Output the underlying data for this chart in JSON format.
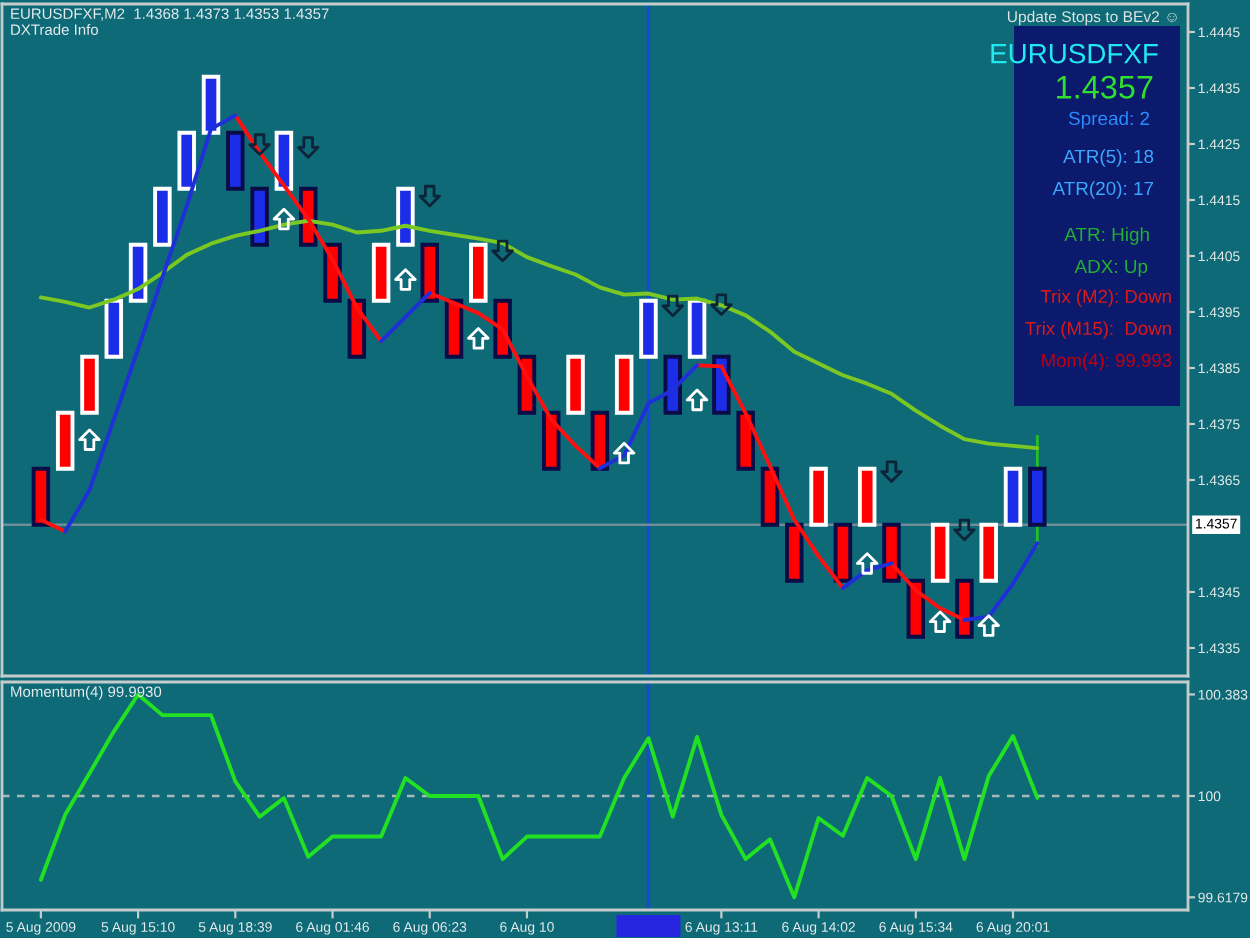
{
  "chart_data": [
    {
      "type": "candlestick",
      "title": "EURUSDFXF,M2  1.4368 1.4373 1.4353 1.4357",
      "subtitle": "DXTrade Info",
      "categories": [
        null,
        null,
        null,
        null,
        null,
        null,
        null,
        null,
        null,
        null,
        null,
        null,
        null,
        null,
        null,
        null,
        null,
        null,
        null,
        null,
        null,
        null,
        null,
        null,
        null,
        null,
        null,
        null,
        null,
        null,
        null,
        null,
        null,
        null,
        null,
        null,
        null,
        null,
        null,
        null,
        null,
        null
      ],
      "ohlc": [
        [
          1.4367,
          1.4367,
          1.4357,
          1.4357
        ],
        [
          1.4367,
          1.4377,
          1.4367,
          1.4377
        ],
        [
          1.4377,
          1.4387,
          1.4377,
          1.4387
        ],
        [
          1.4387,
          1.4397,
          1.4387,
          1.4397
        ],
        [
          1.4397,
          1.4407,
          1.4397,
          1.4407
        ],
        [
          1.4407,
          1.4417,
          1.4407,
          1.4417
        ],
        [
          1.4417,
          1.4427,
          1.4417,
          1.4427
        ],
        [
          1.4427,
          1.4437,
          1.4427,
          1.4437
        ],
        [
          1.4427,
          1.4427,
          1.4417,
          1.4417
        ],
        [
          1.4417,
          1.4417,
          1.4407,
          1.4407
        ],
        [
          1.4417,
          1.4427,
          1.4417,
          1.4427
        ],
        [
          1.4417,
          1.4417,
          1.4407,
          1.4407
        ],
        [
          1.4407,
          1.4407,
          1.4397,
          1.4397
        ],
        [
          1.4397,
          1.4397,
          1.4387,
          1.4387
        ],
        [
          1.4397,
          1.4407,
          1.4397,
          1.4407
        ],
        [
          1.4407,
          1.4417,
          1.4407,
          1.4417
        ],
        [
          1.4407,
          1.4407,
          1.4397,
          1.4397
        ],
        [
          1.4397,
          1.4397,
          1.4387,
          1.4387
        ],
        [
          1.4397,
          1.4407,
          1.4397,
          1.4407
        ],
        [
          1.4397,
          1.4397,
          1.4387,
          1.4387
        ],
        [
          1.4387,
          1.4387,
          1.4377,
          1.4377
        ],
        [
          1.4377,
          1.4377,
          1.4367,
          1.4367
        ],
        [
          1.4377,
          1.4387,
          1.4377,
          1.4387
        ],
        [
          1.4377,
          1.4377,
          1.4367,
          1.4367
        ],
        [
          1.4377,
          1.4387,
          1.4377,
          1.4387
        ],
        [
          1.4387,
          1.4397,
          1.4387,
          1.4397
        ],
        [
          1.4387,
          1.4387,
          1.4377,
          1.4377
        ],
        [
          1.4387,
          1.4397,
          1.4387,
          1.4397
        ],
        [
          1.4387,
          1.4387,
          1.4377,
          1.4377
        ],
        [
          1.4377,
          1.4377,
          1.4367,
          1.4367
        ],
        [
          1.4367,
          1.4367,
          1.4357,
          1.4357
        ],
        [
          1.4357,
          1.4357,
          1.4347,
          1.4347
        ],
        [
          1.4357,
          1.4367,
          1.4357,
          1.4367
        ],
        [
          1.4357,
          1.4357,
          1.4347,
          1.4347
        ],
        [
          1.4357,
          1.4367,
          1.4357,
          1.4367
        ],
        [
          1.4357,
          1.4357,
          1.4347,
          1.4347
        ],
        [
          1.4347,
          1.4347,
          1.4337,
          1.4337
        ],
        [
          1.4347,
          1.4357,
          1.4347,
          1.4357
        ],
        [
          1.4347,
          1.4347,
          1.4337,
          1.4337
        ],
        [
          1.4347,
          1.4357,
          1.4347,
          1.4357
        ],
        [
          1.4357,
          1.4367,
          1.4357,
          1.4367
        ],
        [
          1.4367,
          1.4373,
          1.4353,
          1.4357
        ]
      ],
      "colors": [
        "#ff0000",
        "#ff0000",
        "#ff0000",
        "#1c2de8",
        "#1c2de8",
        "#1c2de8",
        "#1c2de8",
        "#1c2de8",
        "#1c2de8",
        "#1c2de8",
        "#1c2de8",
        "#ff0000",
        "#ff0000",
        "#ff0000",
        "#ff0000",
        "#1c2de8",
        "#ff0000",
        "#ff0000",
        "#ff0000",
        "#ff0000",
        "#ff0000",
        "#ff0000",
        "#ff0000",
        "#ff0000",
        "#ff0000",
        "#1c2de8",
        "#1c2de8",
        "#1c2de8",
        "#1c2de8",
        "#ff0000",
        "#ff0000",
        "#ff0000",
        "#ff0000",
        "#ff0000",
        "#ff0000",
        "#ff0000",
        "#ff0000",
        "#ff0000",
        "#ff0000",
        "#ff0000",
        "#1c2de8",
        "#1c2de8"
      ],
      "series": [
        {
          "type": "line",
          "color": "#7cc822",
          "values": [
            1.43976,
            1.43968,
            1.43958,
            1.43972,
            1.43991,
            1.4402,
            1.44052,
            1.44072,
            1.44086,
            1.44095,
            1.44106,
            1.44113,
            1.44106,
            1.44092,
            1.44095,
            1.44104,
            1.44095,
            1.44088,
            1.44081,
            1.44073,
            1.44048,
            1.44032,
            1.44017,
            1.43994,
            1.43981,
            1.43983,
            1.43972,
            1.43974,
            1.43962,
            1.43944,
            1.43915,
            1.43879,
            1.43858,
            1.43837,
            1.43822,
            1.43804,
            1.43774,
            1.43747,
            1.43723,
            1.43715,
            1.43711,
            1.43707
          ]
        },
        {
          "type": "line",
          "color": "#ff1010",
          "values": [
            1.43579,
            1.43558,
            null,
            null,
            null,
            null,
            null,
            null,
            1.44301,
            1.44235,
            1.44176,
            1.44116,
            1.44044,
            1.43958,
            1.43898,
            null,
            1.43984,
            1.43966,
            1.43948,
            1.43919,
            1.43835,
            1.43758,
            1.43711,
            1.43671,
            null,
            null,
            null,
            1.43855,
            1.43853,
            1.43769,
            1.43675,
            1.43579,
            1.43514,
            1.43457,
            null,
            1.43501,
            1.43453,
            1.43421,
            1.434,
            null,
            null,
            null
          ]
        },
        {
          "type": "line",
          "color": "#2030d8",
          "values": [
            null,
            1.43558,
            1.43632,
            1.43758,
            1.43884,
            1.44012,
            1.44139,
            1.44277,
            1.44301,
            null,
            null,
            null,
            null,
            null,
            1.43898,
            1.43941,
            1.43984,
            null,
            null,
            null,
            null,
            null,
            null,
            1.43671,
            1.43694,
            1.43787,
            1.43811,
            1.43855,
            null,
            null,
            null,
            null,
            null,
            1.43457,
            1.43489,
            1.43501,
            null,
            null,
            1.434,
            1.43406,
            1.43465,
            1.43537
          ]
        },
        {
          "type": "scatter",
          "marker": "triangle",
          "color": "#ffffff",
          "values": [
            null,
            null,
            1.43722,
            null,
            null,
            null,
            null,
            null,
            null,
            null,
            1.44116,
            null,
            null,
            null,
            null,
            1.44008,
            null,
            null,
            1.43903,
            null,
            null,
            null,
            null,
            null,
            1.43698,
            null,
            null,
            1.43793,
            null,
            null,
            null,
            null,
            null,
            null,
            1.43501,
            null,
            null,
            1.43397,
            null,
            1.4339,
            null,
            null
          ]
        },
        {
          "type": "scatter",
          "marker": "triangle_down",
          "color": "#0c2438",
          "values": [
            null,
            null,
            null,
            null,
            null,
            null,
            null,
            null,
            null,
            1.44249,
            null,
            1.44244,
            null,
            null,
            null,
            null,
            1.44157,
            null,
            null,
            1.44059,
            null,
            null,
            null,
            null,
            null,
            null,
            1.43961,
            null,
            1.43963,
            null,
            null,
            null,
            null,
            null,
            null,
            1.43665,
            null,
            null,
            1.43561,
            null,
            null,
            null
          ]
        }
      ],
      "ylim": [
        1.433,
        1.445
      ],
      "yticks": [
        1.4445,
        1.4435,
        1.4425,
        1.4415,
        1.4405,
        1.4395,
        1.4385,
        1.4375,
        1.4365,
        1.4345,
        1.4335
      ],
      "tick_labels": "y",
      "ref_lines": [
        {
          "axis": "y",
          "value": 1.4357,
          "label": "1.4357",
          "color": "#6f8c98"
        }
      ],
      "annotations": [
        "Update Stops to BEv2 ☺",
        "EURUSDFXF",
        "1.4357",
        "Spread: 2",
        "ATR(5): 18",
        "ATR(20): 17",
        "ATR: High",
        "ADX: Up",
        "Trix (M2): Down",
        "Trix (M15):  Down",
        "Mom(4): 99.993"
      ]
    },
    {
      "type": "line",
      "title": "Momentum(4) 99.9930",
      "categories": [
        "5 Aug 2009",
        null,
        null,
        null,
        "5 Aug 15:10",
        null,
        null,
        null,
        "5 Aug 18:39",
        null,
        null,
        null,
        "6 Aug 01:46",
        null,
        null,
        null,
        "6 Aug 06:23",
        null,
        null,
        null,
        "6 Aug 10",
        null,
        null,
        null,
        null,
        null,
        null,
        null,
        "6 Aug 13:11",
        null,
        null,
        null,
        "6 Aug 14:02",
        null,
        null,
        null,
        "6 Aug 15:34",
        null,
        null,
        null,
        "6 Aug 20:01",
        null
      ],
      "series": [
        {
          "color": "#22e022",
          "values": [
            99.684,
            99.929,
            100.086,
            100.243,
            100.383,
            100.305,
            100.305,
            100.305,
            100.055,
            99.922,
            99.992,
            99.771,
            99.847,
            99.847,
            99.847,
            100.068,
            100.0,
            100.0,
            100.0,
            99.762,
            99.847,
            99.847,
            99.847,
            99.847,
            100.068,
            100.218,
            99.922,
            100.223,
            99.929,
            99.762,
            99.837,
            99.6179,
            99.917,
            99.85,
            100.068,
            100.0,
            99.762,
            100.068,
            99.762,
            100.075,
            100.226,
            99.993
          ]
        }
      ],
      "ylim": [
        99.57,
        100.43
      ],
      "yticks": [
        100.383,
        100,
        99.6179
      ],
      "ref_lines": [
        {
          "axis": "y",
          "value": 100,
          "line_style": "dashed",
          "color": "#a8b8b8"
        }
      ]
    }
  ]
}
